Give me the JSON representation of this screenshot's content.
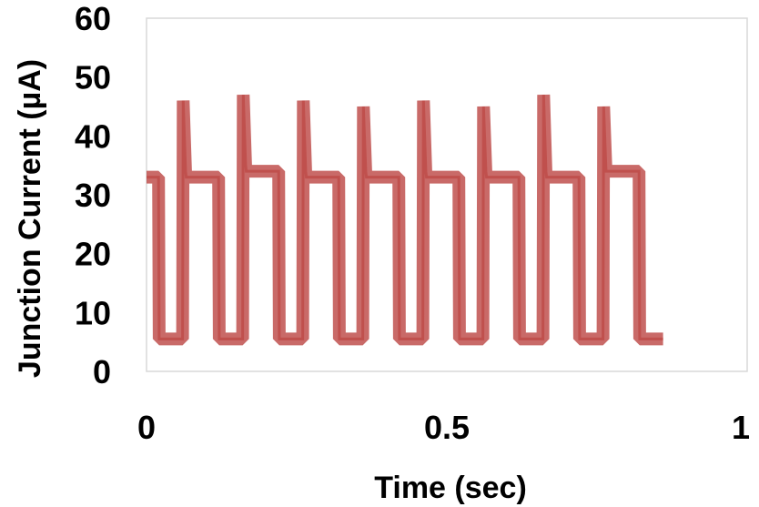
{
  "chart_data": {
    "type": "line",
    "title": "",
    "xlabel": "Time (sec)",
    "ylabel": "Junction Current (µA)",
    "xlim": [
      0,
      1
    ],
    "ylim": [
      0,
      60
    ],
    "xticks": [
      "0",
      "0.5",
      "1"
    ],
    "yticks": [
      "0",
      "10",
      "20",
      "30",
      "40",
      "50",
      "60"
    ],
    "grid": false,
    "legend": "none",
    "line_color": "#c0504d",
    "series": [
      {
        "x": [
          0.0,
          0.02,
          0.021,
          0.06,
          0.061,
          0.065,
          0.066,
          0.12,
          0.121,
          0.16,
          0.161,
          0.165,
          0.166,
          0.22,
          0.221,
          0.26,
          0.261,
          0.265,
          0.266,
          0.32,
          0.321,
          0.36,
          0.361,
          0.365,
          0.366,
          0.42,
          0.421,
          0.46,
          0.461,
          0.465,
          0.466,
          0.52,
          0.521,
          0.56,
          0.561,
          0.565,
          0.566,
          0.62,
          0.621,
          0.66,
          0.661,
          0.665,
          0.666,
          0.72,
          0.721,
          0.76,
          0.761,
          0.765,
          0.766,
          0.82,
          0.821,
          0.86
        ],
        "y": [
          33,
          33,
          5.5,
          5.5,
          46,
          34,
          33,
          33,
          5.5,
          5.5,
          47,
          35,
          34,
          34,
          5.5,
          5.5,
          46,
          34,
          33,
          33,
          5.5,
          5.5,
          45,
          34,
          33,
          33,
          5.5,
          5.5,
          46,
          34,
          33,
          33,
          5.5,
          5.5,
          45,
          34,
          33,
          33,
          5.5,
          5.5,
          47,
          34,
          33,
          33,
          5.5,
          5.5,
          45,
          34,
          34,
          34,
          5.5,
          5.5
        ]
      }
    ]
  }
}
